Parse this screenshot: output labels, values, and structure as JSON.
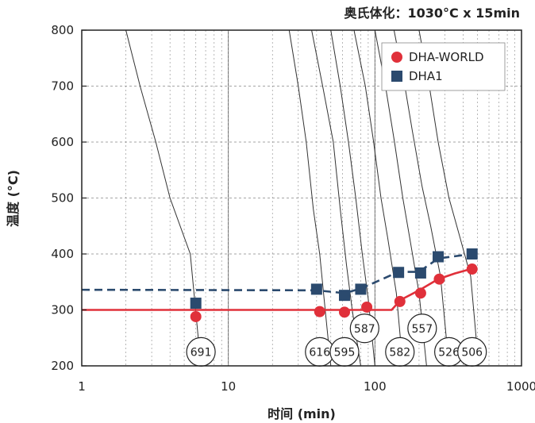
{
  "header": "奥氏体化：1030°C x 15min",
  "chart_data": {
    "type": "line",
    "xlabel": "时间 (min)",
    "ylabel": "温度 (°C)",
    "x_scale": "log",
    "xlim": [
      1,
      1000
    ],
    "ylim": [
      200,
      800
    ],
    "x_ticks": [
      "1",
      "10",
      "100",
      "1000"
    ],
    "y_ticks": [
      "200",
      "300",
      "400",
      "500",
      "600",
      "700",
      "800"
    ],
    "legend_position": "top-right",
    "grid": true,
    "colors": {
      "DHA-WORLD": "#e0303a",
      "DHA1": "#2b4a6e"
    },
    "series": [
      {
        "name": "DHA-WORLD",
        "line": [
          [
            1,
            300
          ],
          [
            130,
            300
          ],
          [
            150,
            318
          ],
          [
            200,
            335
          ],
          [
            270,
            355
          ],
          [
            350,
            365
          ],
          [
            450,
            373
          ]
        ],
        "points": [
          [
            6,
            288
          ],
          [
            42,
            297
          ],
          [
            62,
            296
          ],
          [
            88,
            305
          ],
          [
            148,
            315
          ],
          [
            205,
            330
          ],
          [
            275,
            355
          ],
          [
            460,
            373
          ]
        ]
      },
      {
        "name": "DHA1",
        "line": [
          [
            1,
            336
          ],
          [
            40,
            335
          ],
          [
            62,
            330
          ],
          [
            80,
            338
          ],
          [
            145,
            368
          ],
          [
            200,
            368
          ],
          [
            270,
            392
          ],
          [
            460,
            400
          ]
        ],
        "points": [
          [
            6,
            312
          ],
          [
            40,
            337
          ],
          [
            62,
            326
          ],
          [
            80,
            337
          ],
          [
            145,
            367
          ],
          [
            205,
            366
          ],
          [
            270,
            395
          ],
          [
            460,
            400
          ]
        ]
      }
    ],
    "cooling_curves": [
      [
        [
          2,
          800
        ],
        [
          2.5,
          700
        ],
        [
          3.2,
          600
        ],
        [
          4,
          500
        ],
        [
          5.5,
          400
        ],
        [
          6.5,
          200
        ]
      ],
      [
        [
          26,
          800
        ],
        [
          30,
          700
        ],
        [
          34,
          600
        ],
        [
          38,
          480
        ],
        [
          42,
          400
        ],
        [
          45,
          320
        ],
        [
          50,
          200
        ]
      ],
      [
        [
          37,
          800
        ],
        [
          44,
          700
        ],
        [
          52,
          600
        ],
        [
          58,
          480
        ],
        [
          64,
          380
        ],
        [
          70,
          300
        ],
        [
          80,
          200
        ]
      ],
      [
        [
          50,
          800
        ],
        [
          58,
          700
        ],
        [
          66,
          600
        ],
        [
          74,
          500
        ],
        [
          82,
          400
        ],
        [
          90,
          320
        ],
        [
          100,
          200
        ]
      ],
      [
        [
          72,
          800
        ],
        [
          86,
          700
        ],
        [
          98,
          600
        ],
        [
          110,
          500
        ],
        [
          122,
          430
        ],
        [
          140,
          330
        ],
        [
          155,
          200
        ]
      ],
      [
        [
          100,
          800
        ],
        [
          118,
          700
        ],
        [
          136,
          600
        ],
        [
          155,
          500
        ],
        [
          175,
          420
        ],
        [
          200,
          330
        ],
        [
          225,
          200
        ]
      ],
      [
        [
          135,
          800
        ],
        [
          160,
          700
        ],
        [
          180,
          620
        ],
        [
          210,
          520
        ],
        [
          240,
          450
        ],
        [
          280,
          360
        ],
        [
          320,
          200
        ]
      ],
      [
        [
          200,
          800
        ],
        [
          235,
          700
        ],
        [
          270,
          600
        ],
        [
          320,
          500
        ],
        [
          380,
          430
        ],
        [
          450,
          360
        ],
        [
          510,
          200
        ]
      ]
    ],
    "annotations": [
      {
        "text": "691",
        "x": 6.5,
        "y": 225
      },
      {
        "text": "616",
        "x": 42,
        "y": 225
      },
      {
        "text": "595",
        "x": 62,
        "y": 225
      },
      {
        "text": "587",
        "x": 85,
        "y": 267
      },
      {
        "text": "582",
        "x": 148,
        "y": 225
      },
      {
        "text": "557",
        "x": 210,
        "y": 267
      },
      {
        "text": "526",
        "x": 320,
        "y": 225
      },
      {
        "text": "506",
        "x": 460,
        "y": 225
      }
    ]
  }
}
